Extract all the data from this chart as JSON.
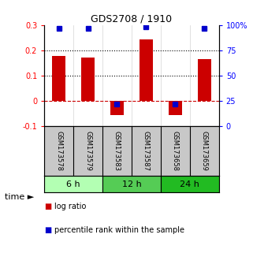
{
  "title": "GDS2708 / 1910",
  "samples": [
    "GSM173578",
    "GSM173579",
    "GSM173583",
    "GSM173587",
    "GSM173658",
    "GSM173659"
  ],
  "log_ratios": [
    0.178,
    0.172,
    -0.055,
    0.245,
    -0.055,
    0.165
  ],
  "percentile_ranks": [
    0.97,
    0.97,
    0.22,
    0.98,
    0.22,
    0.97
  ],
  "time_groups": [
    {
      "label": "6 h",
      "span": [
        0,
        2
      ],
      "color": "#b3ffb3"
    },
    {
      "label": "12 h",
      "span": [
        2,
        4
      ],
      "color": "#55cc55"
    },
    {
      "label": "24 h",
      "span": [
        4,
        6
      ],
      "color": "#22bb22"
    }
  ],
  "bar_color": "#cc0000",
  "dot_color": "#0000cc",
  "ylim_left": [
    -0.1,
    0.3
  ],
  "yticks_left": [
    -0.1,
    0.0,
    0.1,
    0.2,
    0.3
  ],
  "yticks_left_labels": [
    "-0.1",
    "0",
    "0.1",
    "0.2",
    "0.3"
  ],
  "yticks_right_pct": [
    0,
    25,
    50,
    75,
    100
  ],
  "yticks_right_labels": [
    "0",
    "25",
    "50",
    "75",
    "100%"
  ],
  "hlines_dotted": [
    0.1,
    0.2
  ],
  "zero_line_color": "#cc0000",
  "bar_width": 0.45,
  "background_color": "white",
  "label_bg_color": "#c8c8c8",
  "legend_red_label": "log ratio",
  "legend_blue_label": "percentile rank within the sample",
  "time_label": "time"
}
